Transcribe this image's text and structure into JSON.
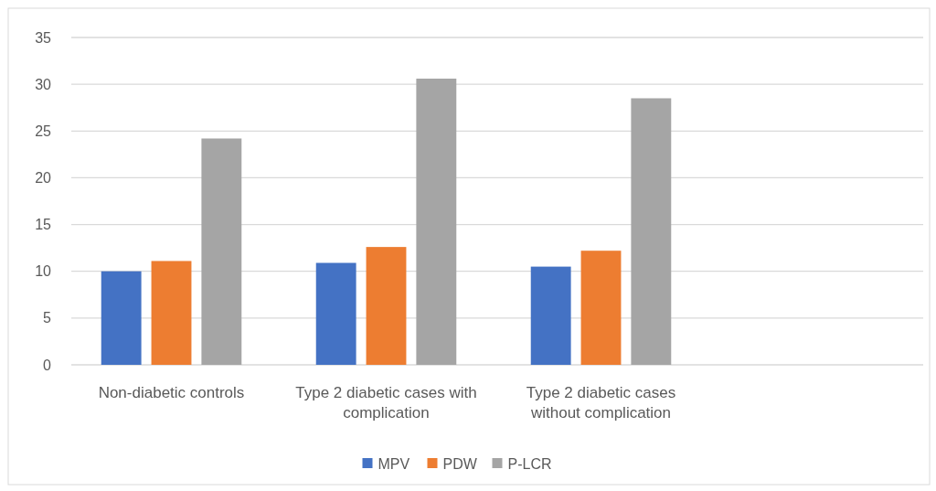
{
  "chart_data": {
    "type": "bar",
    "categories": [
      "Non-diabetic controls",
      "Type 2 diabetic cases with complication",
      "Type 2 diabetic cases without complication",
      null
    ],
    "series": [
      {
        "name": "MPV",
        "color": "#4472c4",
        "values": [
          10.0,
          10.9,
          10.5,
          null
        ]
      },
      {
        "name": "PDW",
        "color": "#ed7d31",
        "values": [
          11.1,
          12.6,
          12.2,
          null
        ]
      },
      {
        "name": "P-LCR",
        "color": "#a5a5a5",
        "values": [
          24.2,
          30.6,
          28.5,
          null
        ]
      }
    ],
    "ylim": [
      0,
      35
    ],
    "yticks": [
      0,
      5,
      10,
      15,
      20,
      25,
      30,
      35
    ],
    "grid": "y",
    "legend": "bottom"
  }
}
